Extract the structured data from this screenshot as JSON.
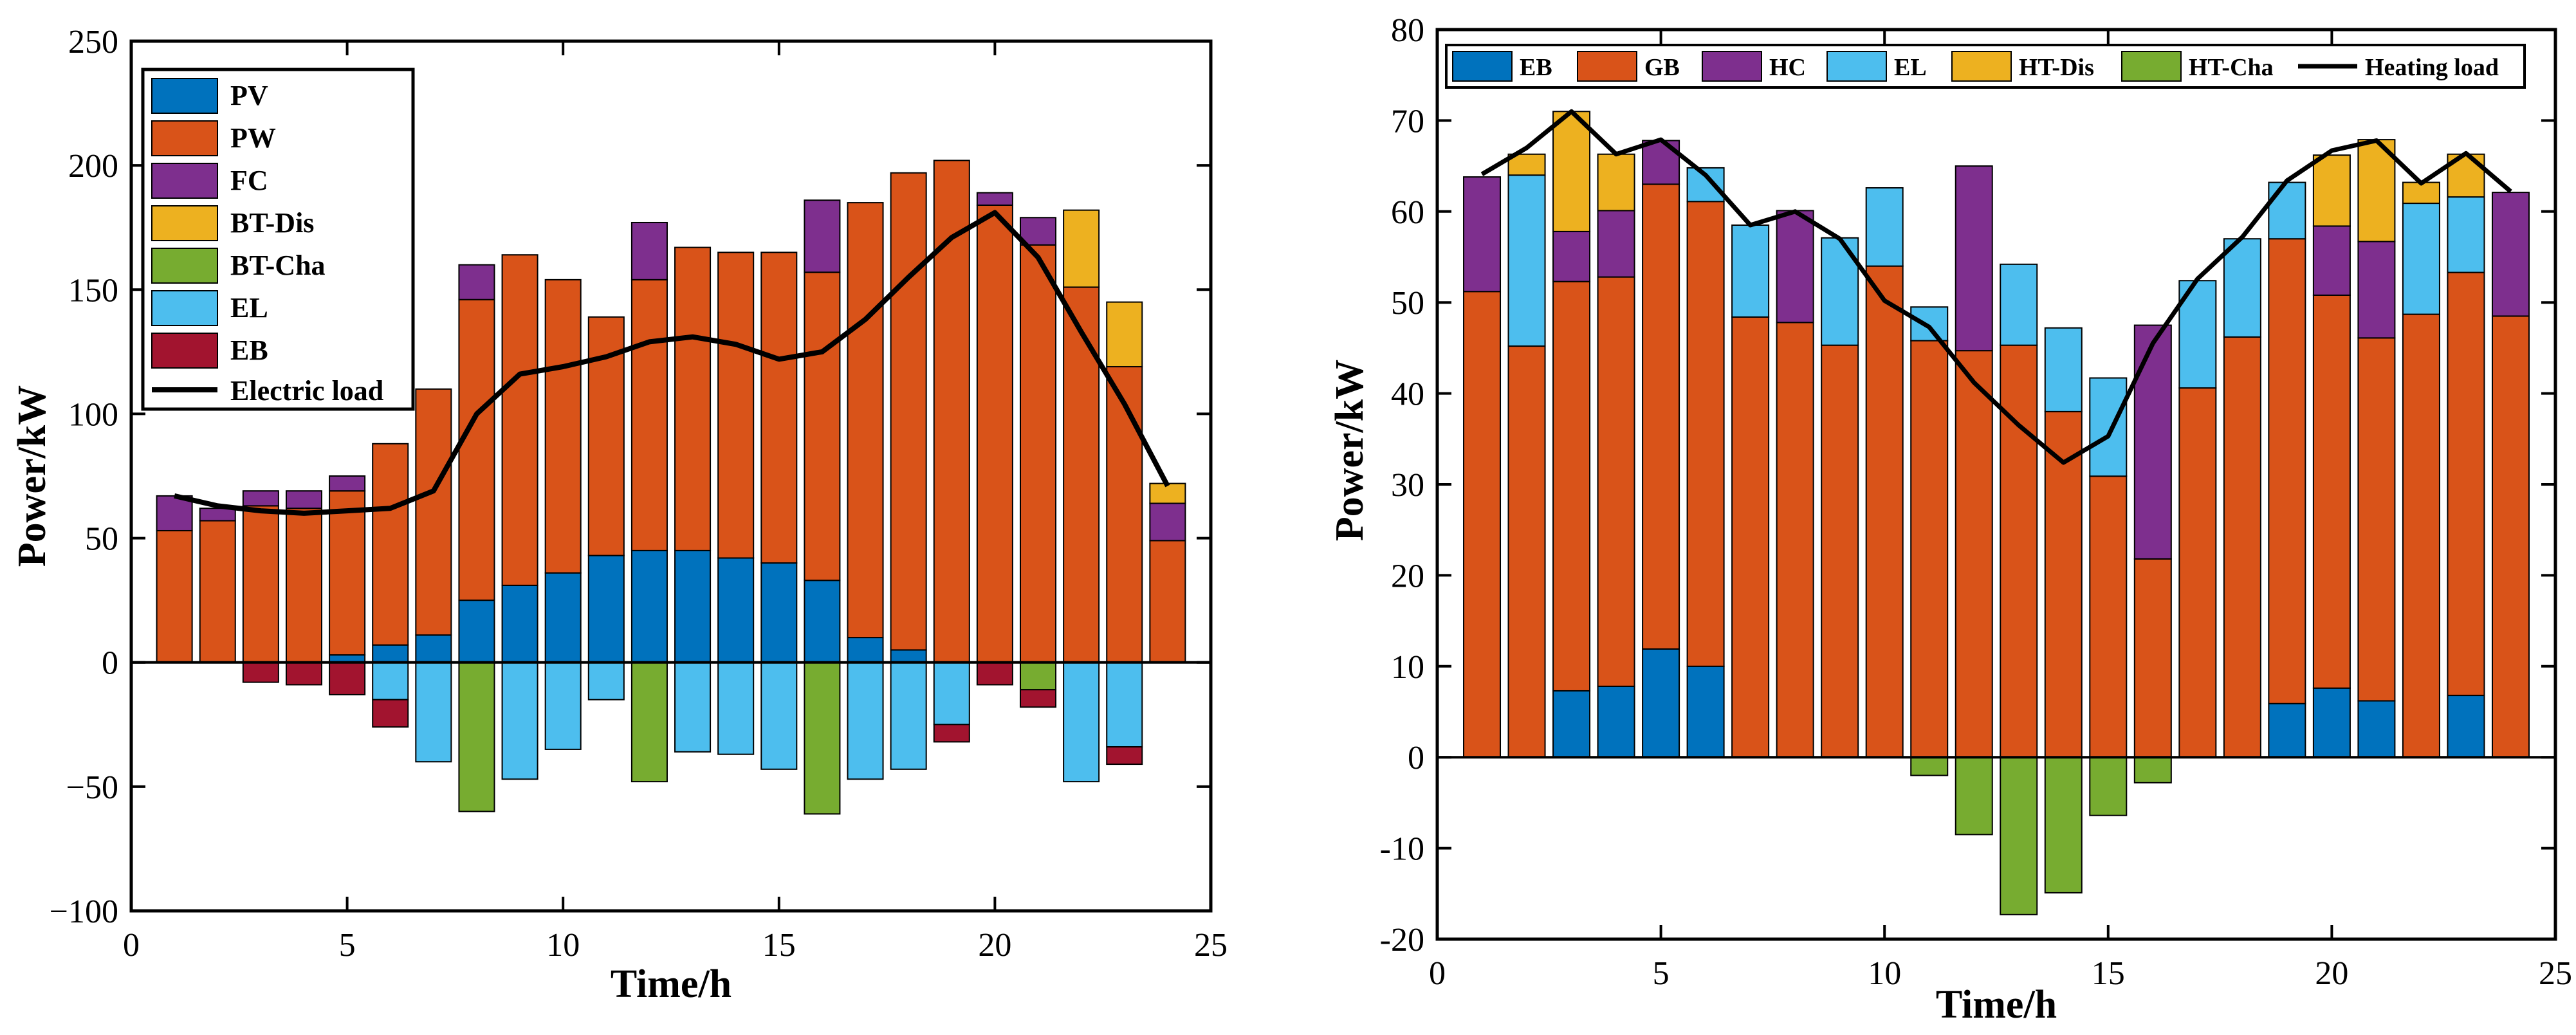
{
  "chart_data": [
    {
      "id": "electric",
      "type": "bar",
      "stacked": true,
      "title": "",
      "xlabel": "Time/h",
      "ylabel": "Power/kW",
      "xlim": [
        0,
        25
      ],
      "ylim": [
        -100,
        250
      ],
      "xticks": [
        0,
        5,
        10,
        15,
        20,
        25
      ],
      "yticks": [
        -100,
        -50,
        0,
        50,
        100,
        150,
        200,
        250
      ],
      "xtick_labels": [
        "0",
        "5",
        "10",
        "15",
        "20",
        "25"
      ],
      "ytick_labels": [
        "−100",
        "−50",
        "0",
        "50",
        "100",
        "150",
        "200",
        "250"
      ],
      "legend_position": "top-left",
      "x": [
        1,
        2,
        3,
        4,
        5,
        6,
        7,
        8,
        9,
        10,
        11,
        12,
        13,
        14,
        15,
        16,
        17,
        18,
        19,
        20,
        21,
        22,
        23,
        24
      ],
      "series": [
        {
          "name": "PV",
          "color": "#0072BD",
          "values": [
            0,
            0,
            0,
            0,
            3,
            7,
            11,
            25,
            31,
            36,
            43,
            45,
            45,
            42,
            40,
            33,
            10,
            5,
            0,
            0,
            0,
            0,
            0,
            0
          ]
        },
        {
          "name": "PW",
          "color": "#D95319",
          "values": [
            53,
            57,
            63,
            62,
            66,
            81,
            99,
            121,
            133,
            118,
            96,
            109,
            122,
            123,
            125,
            124,
            175,
            192,
            202,
            184,
            168,
            151,
            119,
            49
          ]
        },
        {
          "name": "FC",
          "color": "#7E2F8E",
          "values": [
            14,
            5,
            6,
            7,
            6,
            0,
            0,
            14,
            0,
            0,
            0,
            23,
            0,
            0,
            0,
            29,
            0,
            0,
            0,
            5,
            11,
            0,
            0,
            15
          ]
        },
        {
          "name": "BT-Dis",
          "color": "#EDB120",
          "values": [
            0,
            0,
            0,
            0,
            0,
            0,
            0,
            0,
            0,
            0,
            0,
            0,
            0,
            0,
            0,
            0,
            0,
            0,
            0,
            0,
            0,
            31,
            26,
            8
          ]
        },
        {
          "name": "BT-Cha",
          "color": "#77AC30",
          "values": [
            0,
            0,
            0,
            0,
            0,
            0,
            0,
            -60,
            0,
            0,
            0,
            -48,
            0,
            0,
            0,
            -61,
            0,
            0,
            0,
            0,
            -11,
            0,
            0,
            0
          ]
        },
        {
          "name": "EL",
          "color": "#4DBEEE",
          "values": [
            0,
            0,
            0,
            0,
            0,
            -15,
            -40,
            0,
            -47,
            -35,
            -15,
            0,
            -36,
            -37,
            -43,
            0,
            -47,
            -43,
            -25,
            0,
            0,
            -48,
            -34,
            0
          ]
        },
        {
          "name": "EB",
          "color": "#A2142F",
          "values": [
            0,
            0,
            -8,
            -9,
            -13,
            -11,
            0,
            0,
            0,
            0,
            0,
            0,
            0,
            0,
            0,
            0,
            0,
            0,
            -7,
            -9,
            -7,
            0,
            -7,
            0
          ]
        }
      ],
      "line": {
        "name": "Electric load",
        "color": "#000000",
        "values": [
          67,
          63,
          61,
          60,
          61,
          62,
          69,
          100,
          116,
          119,
          123,
          129,
          131,
          128,
          122,
          125,
          138,
          155,
          171,
          181,
          163,
          133,
          104,
          71
        ]
      },
      "legend_entries": [
        "PV",
        "PW",
        "FC",
        "BT-Dis",
        "BT-Cha",
        "EL",
        "EB",
        "Electric load"
      ]
    },
    {
      "id": "heating",
      "type": "bar",
      "stacked": true,
      "title": "",
      "xlabel": "Time/h",
      "ylabel": "Power/kW",
      "xlim": [
        0,
        25
      ],
      "ylim": [
        -20,
        80
      ],
      "xticks": [
        0,
        5,
        10,
        15,
        20,
        25
      ],
      "yticks": [
        -20,
        -10,
        0,
        10,
        20,
        30,
        40,
        50,
        60,
        70,
        80
      ],
      "xtick_labels": [
        "0",
        "5",
        "10",
        "15",
        "20",
        "25"
      ],
      "ytick_labels": [
        "-20",
        "-10",
        "0",
        "10",
        "20",
        "30",
        "40",
        "50",
        "60",
        "70",
        "80"
      ],
      "legend_position": "top",
      "x": [
        1,
        2,
        3,
        4,
        5,
        6,
        7,
        8,
        9,
        10,
        11,
        12,
        13,
        14,
        15,
        16,
        17,
        18,
        19,
        20,
        21,
        22,
        23,
        24
      ],
      "series": [
        {
          "name": "EB",
          "color": "#0072BD",
          "values": [
            0,
            0,
            7.3,
            7.8,
            11.9,
            10,
            0,
            0,
            0,
            0,
            0,
            0,
            0,
            0,
            0,
            0,
            0,
            0,
            5.9,
            7.6,
            6.2,
            0,
            6.8,
            0
          ]
        },
        {
          "name": "GB",
          "color": "#D95319",
          "values": [
            51.2,
            45.2,
            45,
            45,
            51.1,
            51.1,
            48.4,
            47.8,
            45.3,
            54,
            45.8,
            44.7,
            45.3,
            38,
            30.9,
            21.8,
            40.6,
            46.2,
            51.1,
            43.2,
            39.9,
            48.7,
            46.5,
            48.5
          ]
        },
        {
          "name": "HC",
          "color": "#7E2F8E",
          "values": [
            12.6,
            0,
            5.5,
            7.3,
            4.8,
            0,
            0,
            12.3,
            0,
            0,
            0,
            20.3,
            0,
            0,
            0,
            25.7,
            0,
            0,
            0,
            7.6,
            10.6,
            0,
            0,
            13.6
          ]
        },
        {
          "name": "EL",
          "color": "#4DBEEE",
          "values": [
            0,
            18.8,
            0,
            0,
            0,
            3.7,
            10.1,
            0,
            11.8,
            8.6,
            3.7,
            0,
            8.9,
            9.2,
            10.8,
            0,
            11.8,
            10.8,
            6.2,
            0,
            0,
            12.2,
            8.3,
            0
          ]
        },
        {
          "name": "HT-Dis",
          "color": "#EDB120",
          "values": [
            0,
            2.3,
            13.2,
            6.2,
            0,
            0,
            0,
            0,
            0,
            0,
            0,
            0,
            0,
            0,
            0,
            0,
            0,
            0,
            0,
            7.8,
            11.2,
            2.3,
            4.7,
            0
          ]
        },
        {
          "name": "HT-Cha",
          "color": "#77AC30",
          "values": [
            0,
            0,
            0,
            0,
            0,
            0,
            0,
            0,
            0,
            0,
            -2,
            -8.5,
            -17.3,
            -14.9,
            -6.4,
            -2.8,
            0,
            0,
            0,
            0,
            0,
            0,
            0,
            0
          ]
        }
      ],
      "line": {
        "name": "Heating load",
        "color": "#000000",
        "values": [
          64.1,
          67,
          71,
          66.3,
          67.9,
          64,
          58.5,
          60,
          57,
          50.2,
          47.3,
          41.2,
          36.5,
          32.4,
          35.3,
          45.5,
          52.6,
          57.2,
          63.4,
          66.7,
          67.8,
          63.1,
          66.4,
          62.2
        ]
      },
      "legend_entries": [
        "EB",
        "GB",
        "HC",
        "EL",
        "HT-Dis",
        "HT-Cha",
        "Heating load"
      ]
    }
  ]
}
